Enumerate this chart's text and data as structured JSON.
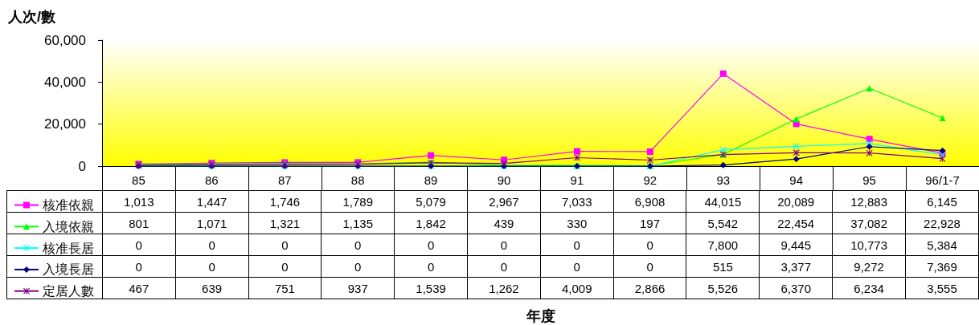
{
  "chart_data": {
    "type": "line",
    "ylabel": "人次/數",
    "annotations": [
      "年度"
    ],
    "categories": [
      "85",
      "86",
      "87",
      "88",
      "89",
      "90",
      "91",
      "92",
      "93",
      "94",
      "95",
      "96/1-7"
    ],
    "ylim": [
      0,
      60000
    ],
    "yticks": [
      {
        "value": 0,
        "label": "0"
      },
      {
        "value": 20000,
        "label": "20,000"
      },
      {
        "value": 40000,
        "label": "40,000"
      },
      {
        "value": 60000,
        "label": "60,000"
      }
    ],
    "grid": false,
    "legend": "bottom left",
    "series": [
      {
        "name": "核准依親",
        "color": "#ff00ff",
        "marker": "square",
        "values": [
          1013,
          1447,
          1746,
          1789,
          5079,
          2967,
          7033,
          6908,
          44015,
          20089,
          12883,
          6145
        ],
        "value_labels": [
          "1,013",
          "1,447",
          "1,746",
          "1,789",
          "5,079",
          "2,967",
          "7,033",
          "6,908",
          "44,015",
          "20,089",
          "12,883",
          "6,145"
        ]
      },
      {
        "name": "入境依親",
        "color": "#00ff00",
        "marker": "triangle",
        "values": [
          801,
          1071,
          1321,
          1135,
          1842,
          439,
          330,
          197,
          5542,
          22454,
          37082,
          22928
        ],
        "value_labels": [
          "801",
          "1,071",
          "1,321",
          "1,135",
          "1,842",
          "439",
          "330",
          "197",
          "5,542",
          "22,454",
          "37,082",
          "22,928"
        ]
      },
      {
        "name": "核准長居",
        "color": "#00ffff",
        "marker": "cross",
        "values": [
          0,
          0,
          0,
          0,
          0,
          0,
          0,
          0,
          7800,
          9445,
          10773,
          5384
        ],
        "value_labels": [
          "0",
          "0",
          "0",
          "0",
          "0",
          "0",
          "0",
          "0",
          "7,800",
          "9,445",
          "10,773",
          "5,384"
        ]
      },
      {
        "name": "入境長居",
        "color": "#000080",
        "marker": "diamond",
        "values": [
          0,
          0,
          0,
          0,
          0,
          0,
          0,
          0,
          515,
          3377,
          9272,
          7369
        ],
        "value_labels": [
          "0",
          "0",
          "0",
          "0",
          "0",
          "0",
          "0",
          "0",
          "515",
          "3,377",
          "9,272",
          "7,369"
        ]
      },
      {
        "name": "定居人數",
        "color": "#800080",
        "marker": "star",
        "values": [
          467,
          639,
          751,
          937,
          1539,
          1262,
          4009,
          2866,
          5526,
          6370,
          6234,
          3555
        ],
        "value_labels": [
          "467",
          "639",
          "751",
          "937",
          "1,539",
          "1,262",
          "4,009",
          "2,866",
          "5,526",
          "6,370",
          "6,234",
          "3,555"
        ]
      }
    ]
  }
}
